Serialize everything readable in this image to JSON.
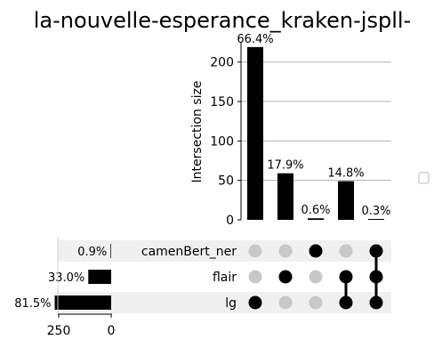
{
  "chart_data": {
    "type": "upset",
    "title": "la-nouvelle-esperance_kraken-jspll-",
    "ylabel": "Intersection size",
    "ylim": [
      0,
      225
    ],
    "yticks": [
      0,
      50,
      100,
      150,
      200
    ],
    "grid": true,
    "sets": [
      {
        "name": "camenBert_ner",
        "size_label": "0.9%",
        "size": 3
      },
      {
        "name": "flair",
        "size_label": "33.0%",
        "size": 109
      },
      {
        "name": "lg",
        "size_label": "81.5%",
        "size": 269
      }
    ],
    "set_size_ticks": [
      250,
      0
    ],
    "intersections": [
      {
        "members": [
          "lg"
        ],
        "value": 219,
        "label": "66.4%"
      },
      {
        "members": [
          "flair"
        ],
        "value": 59,
        "label": "17.9%"
      },
      {
        "members": [
          "camenBert_ner"
        ],
        "value": 2,
        "label": "0.6%"
      },
      {
        "members": [
          "flair",
          "lg"
        ],
        "value": 49,
        "label": "14.8%"
      },
      {
        "members": [
          "camenBert_ner",
          "flair",
          "lg"
        ],
        "value": 1,
        "label": "0.3%"
      }
    ]
  }
}
